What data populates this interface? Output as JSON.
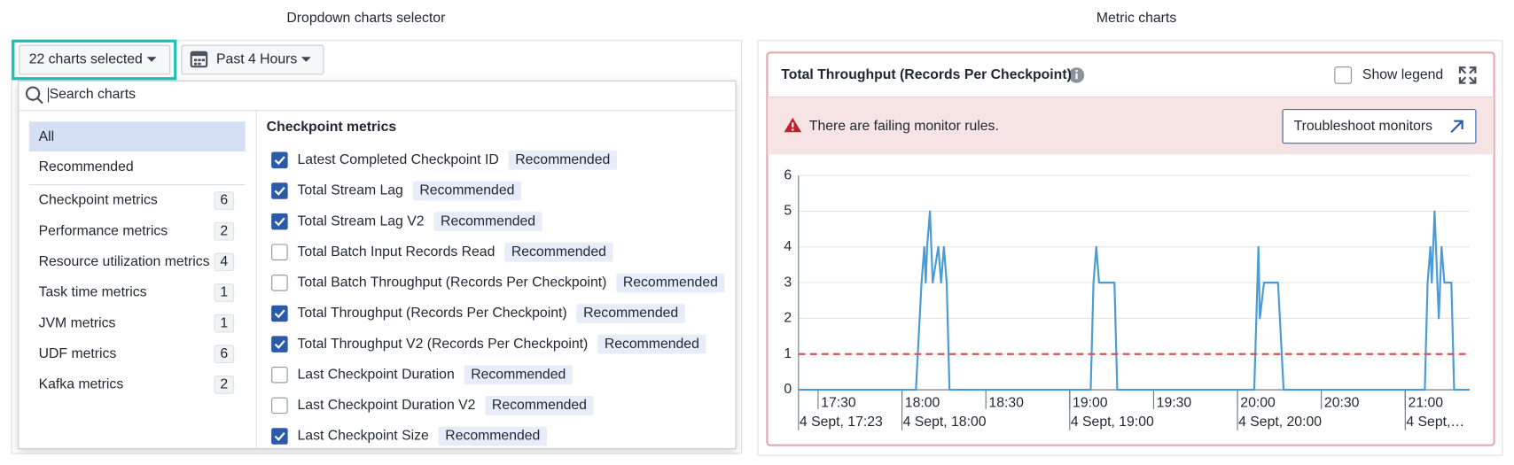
{
  "ui": {
    "left": {
      "title": "Dropdown charts selector",
      "selector_button": "22 charts selected",
      "time_button": "Past 4 Hours",
      "search_placeholder": "Search charts",
      "filters": [
        "All",
        "Recommended"
      ],
      "categories": [
        {
          "label": "Checkpoint metrics",
          "count": 6
        },
        {
          "label": "Performance metrics",
          "count": 2
        },
        {
          "label": "Resource utilization metrics",
          "count": 4
        },
        {
          "label": "Task time metrics",
          "count": 1
        },
        {
          "label": "JVM metrics",
          "count": 1
        },
        {
          "label": "UDF metrics",
          "count": 6
        },
        {
          "label": "Kafka metrics",
          "count": 2
        }
      ],
      "section_title": "Checkpoint metrics",
      "items": [
        {
          "label": "Latest Completed Checkpoint ID",
          "checked": true,
          "badge": "Recommended"
        },
        {
          "label": "Total Stream Lag",
          "checked": true,
          "badge": "Recommended"
        },
        {
          "label": "Total Stream Lag V2",
          "checked": true,
          "badge": "Recommended"
        },
        {
          "label": "Total Batch Input Records Read",
          "checked": false,
          "badge": "Recommended"
        },
        {
          "label": "Total Batch Throughput (Records Per Checkpoint)",
          "checked": false,
          "badge": "Recommended"
        },
        {
          "label": "Total Throughput (Records Per Checkpoint)",
          "checked": true,
          "badge": "Recommended"
        },
        {
          "label": "Total Throughput V2 (Records Per Checkpoint)",
          "checked": true,
          "badge": "Recommended"
        },
        {
          "label": "Last Checkpoint Duration",
          "checked": false,
          "badge": "Recommended"
        },
        {
          "label": "Last Checkpoint Duration V2",
          "checked": false,
          "badge": "Recommended"
        },
        {
          "label": "Last Checkpoint Size",
          "checked": true,
          "badge": "Recommended"
        }
      ]
    },
    "right": {
      "title": "Metric charts",
      "show_legend": "Show legend",
      "alert": "There are failing monitor rules.",
      "alert_button": "Troubleshoot monitors"
    }
  },
  "chart_data": {
    "type": "line",
    "title": "Total Throughput (Records Per Checkpoint)",
    "x": [
      1043,
      1085,
      1087,
      1088,
      1088.5,
      1089,
      1090,
      1091,
      1093,
      1094,
      1095,
      1096,
      1097,
      1147.5,
      1148.5,
      1149.5,
      1150.5,
      1156,
      1157,
      1206,
      1207.5,
      1208,
      1209.5,
      1214.5,
      1216.5,
      1267,
      1268,
      1269,
      1269.5,
      1270.5,
      1272,
      1273,
      1274,
      1276.5,
      1277.5,
      1283
    ],
    "series": [
      {
        "color": "#4a9bd6",
        "values": [
          0,
          0,
          3,
          4,
          3,
          4,
          5,
          3,
          4,
          3,
          4,
          3,
          0,
          0,
          3,
          4,
          3,
          3,
          0,
          0,
          4,
          2,
          3,
          3,
          0,
          0,
          3,
          4,
          3,
          5,
          2,
          4,
          3,
          3,
          0,
          0
        ]
      }
    ],
    "xlim": [
      1043,
      1283
    ],
    "xticks": [
      {
        "value": 1050,
        "label": "17:30"
      },
      {
        "value": 1080,
        "label": "18:00"
      },
      {
        "value": 1110,
        "label": "18:30"
      },
      {
        "value": 1140,
        "label": "19:00"
      },
      {
        "value": 1170,
        "label": "19:30"
      },
      {
        "value": 1200,
        "label": "20:00"
      },
      {
        "value": 1230,
        "label": "20:30"
      },
      {
        "value": 1260,
        "label": "21:00"
      }
    ],
    "xticks_secondary": [
      {
        "value": 1043,
        "label": "4 Sept, 17:23"
      },
      {
        "value": 1080,
        "label": "4 Sept, 18:00"
      },
      {
        "value": 1140,
        "label": "4 Sept, 19:00"
      },
      {
        "value": 1200,
        "label": "4 Sept, 20:00"
      },
      {
        "value": 1260,
        "label": "4 Sept,…"
      }
    ],
    "ylim": [
      0,
      6
    ],
    "yticks": [
      0,
      1,
      2,
      3,
      4,
      5,
      6
    ],
    "grid": true,
    "threshold": {
      "value": 1,
      "color": "#d9534f"
    }
  }
}
